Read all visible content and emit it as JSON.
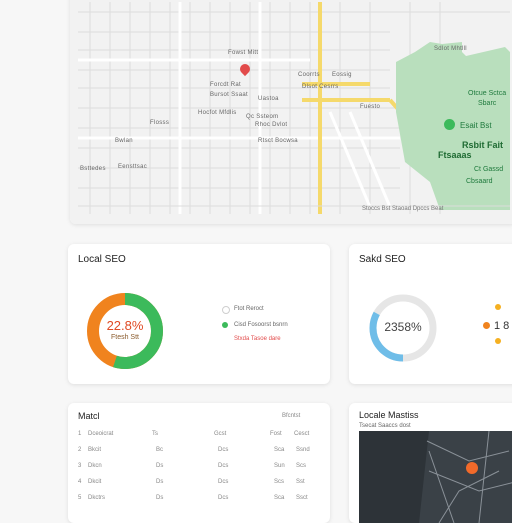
{
  "colors": {
    "accent_green": "#3cba5b",
    "accent_orange": "#f0831e",
    "accent_blue": "#6fbde8",
    "road_yellow": "#f5d96b",
    "park_green": "#b9dfbd",
    "pin_red": "#e24b4b"
  },
  "map": {
    "street_labels": [
      "Fowst Mitt",
      "Coorrts",
      "Eossig",
      "Bursot Ssaat",
      "Uastoa",
      "Fuesto",
      "Hocfot Mfdlis",
      "Rhoc Dvlot",
      "Flosss",
      "Bwlan",
      "Rtsct Bocwsa",
      "Bsttedes",
      "Qc Ssteom",
      "Eensttsac",
      "Dlsot Cesrrs",
      "Forcdt Rat",
      "Sdlot Mhtlll"
    ],
    "park": {
      "title_lines": [
        "Rsbit Fait",
        "Ftsaaas"
      ],
      "pin_label": "Esait Bst",
      "sub_labels": [
        "Otcue Sctca",
        "Sbarc",
        "Ct Gassd",
        "Cbsaard"
      ]
    },
    "footer_text": "Stoccs Bst Staoad Dpccs Beat"
  },
  "local_seo": {
    "title": "Local SEO",
    "donut_value_text": "22.8%",
    "donut_sub_text": "Ftesh Stt",
    "green_fraction": 0.55,
    "legend": [
      {
        "label": "Ftot Reroct",
        "color": "#dddddd"
      },
      {
        "label": "Cisd Fosoorst bsnrn",
        "color": "#3cba5b"
      },
      {
        "label": "Stxda Tasoe dare",
        "color": "#e24b4b"
      }
    ]
  },
  "search_seo": {
    "title": "Sakd SEO",
    "ring_value_text": "2358%",
    "ring_fraction": 0.33,
    "side_value": "1 8",
    "dot_colors": [
      "#f5b021",
      "#f0831e",
      "#f5b021"
    ]
  },
  "bottom_table": {
    "title": "Matcl",
    "header_right": "Bfcntst",
    "rows": [
      [
        "Dceoicrat",
        "Ts",
        "Gcst",
        "Fost",
        "Cesct"
      ],
      [
        "Bkcit",
        "Bc",
        "Dcs",
        "Sca",
        "Ssnd"
      ],
      [
        "Dkcn",
        "Ds",
        "Dcs",
        "Sun",
        "Scs"
      ],
      [
        "Dkcit",
        "Ds",
        "Dcs",
        "Scs",
        "Sst"
      ],
      [
        "Dkctrs",
        "Ds",
        "Dcs",
        "Sca",
        "Ssct"
      ]
    ]
  },
  "bottom_right": {
    "title": "Locale Mastiss",
    "subtitle": "Tsecat Saaccs dost"
  }
}
